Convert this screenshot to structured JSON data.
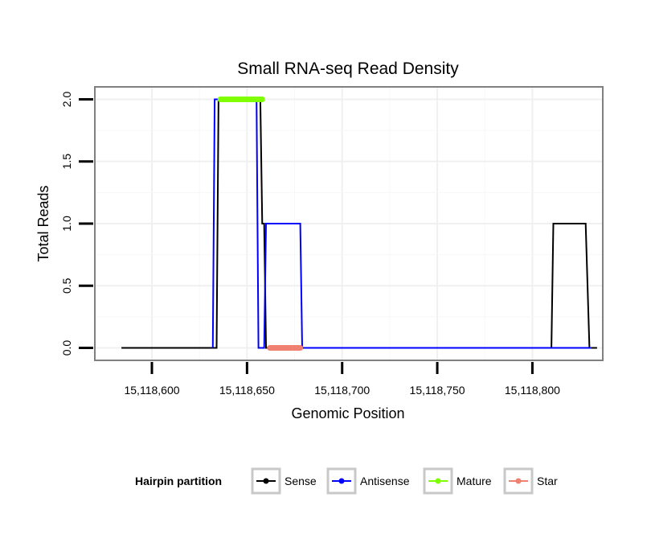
{
  "chart_data": {
    "type": "line",
    "title": "Small RNA-seq Read Density",
    "xlabel": "Genomic Position",
    "ylabel": "Total Reads",
    "xlim": [
      15118570,
      15118837
    ],
    "ylim": [
      -0.1,
      2.1
    ],
    "x_ticks": [
      15118600,
      15118650,
      15118700,
      15118750,
      15118800
    ],
    "x_tick_labels": [
      "15,118,600",
      "15,118,650",
      "15,118,700",
      "15,118,750",
      "15,118,800"
    ],
    "y_ticks": [
      0,
      0.5,
      1,
      1.5,
      2
    ],
    "y_tick_labels": [
      "0.0",
      "0.5",
      "1.0",
      "1.5",
      "2.0"
    ],
    "grid": true,
    "series": [
      {
        "name": "Sense",
        "color": "#000000",
        "x": [
          15118584,
          15118634,
          15118635,
          15118657,
          15118658,
          15118659,
          15118660,
          15118810,
          15118811,
          15118828,
          15118830,
          15118834
        ],
        "y": [
          0,
          0,
          2,
          2,
          1,
          1,
          0,
          0,
          1,
          1,
          0,
          0
        ]
      },
      {
        "name": "Antisense",
        "color": "#0000ff",
        "x": [
          15118632,
          15118633,
          15118655,
          15118656,
          15118659,
          15118660,
          15118678,
          15118679,
          15118831
        ],
        "y": [
          0,
          2,
          2,
          0,
          0,
          1,
          1,
          0,
          0
        ]
      },
      {
        "name": "Mature",
        "color": "#7fff00",
        "x": [
          15118636,
          15118658
        ],
        "y": [
          2,
          2
        ]
      },
      {
        "name": "Star",
        "color": "#f08070",
        "x": [
          15118662,
          15118678
        ],
        "y": [
          0,
          0
        ]
      }
    ],
    "legend": {
      "title": "Hairpin partition",
      "placement": "bottom",
      "entries": [
        "Sense",
        "Antisense",
        "Mature",
        "Star"
      ]
    }
  }
}
